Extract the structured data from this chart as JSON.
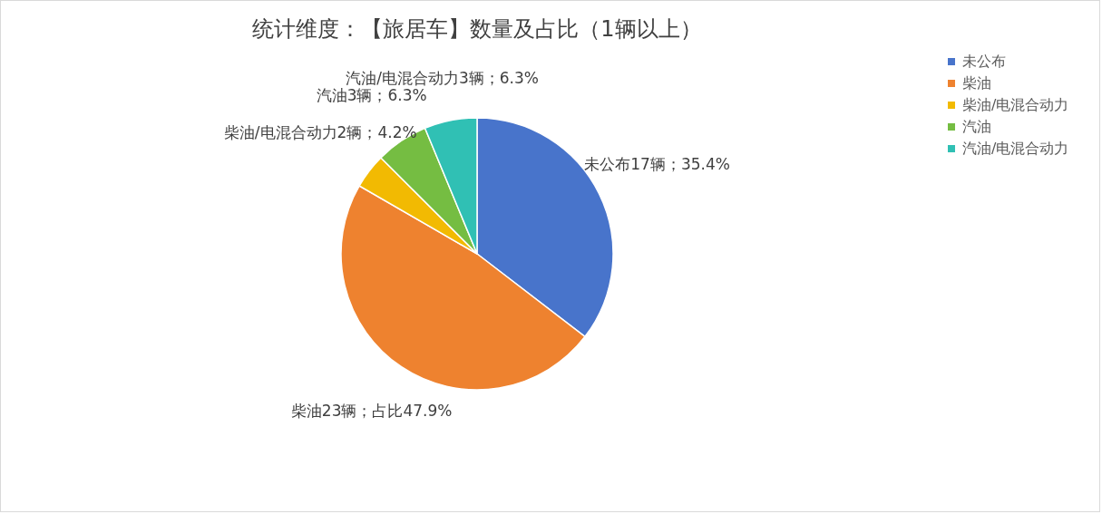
{
  "chart_data": {
    "type": "pie",
    "title": "统计维度：【旅居车】数量及占比（1辆以上）",
    "categories": [
      "未公布",
      "柴油",
      "柴油/电混合动力",
      "汽油",
      "汽油/电混合动力"
    ],
    "values": [
      17,
      23,
      2,
      3,
      3
    ],
    "colors": [
      "#4874cb",
      "#ee822f",
      "#f2ba02",
      "#75bd42",
      "#30c0b4"
    ],
    "value_labels": [
      "未公布17辆；35.4%",
      "柴油23辆；占比47.9%",
      "柴油/电混合动力2辆；4.2%",
      "汽油3辆；6.3%",
      "汽油/电混合动力3辆；6.3%"
    ],
    "legend": "right"
  }
}
